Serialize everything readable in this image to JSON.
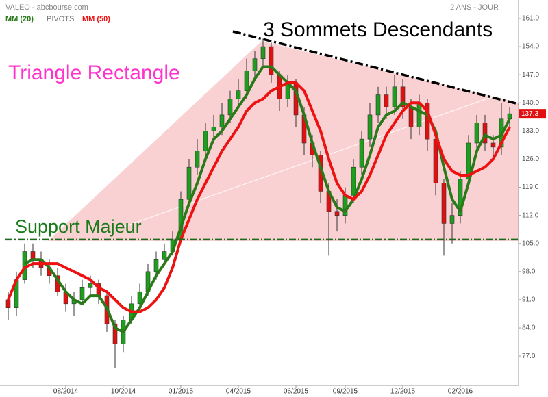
{
  "chart_data": {
    "type": "candlestick",
    "title": "VALEO - abcbourse.com",
    "period": "2 ANS - JOUR",
    "pivots_label": "PIVOTS",
    "annotations": [
      "3 Sommets Descendants",
      "Triangle Rectangle",
      "Support Majeur"
    ],
    "categories": [
      null,
      null,
      null,
      null,
      null,
      null,
      null,
      "08/2014",
      null,
      null,
      null,
      null,
      null,
      null,
      "10/2014",
      null,
      null,
      null,
      null,
      null,
      null,
      "01/2015",
      null,
      null,
      null,
      null,
      null,
      null,
      "04/2015",
      null,
      null,
      null,
      null,
      null,
      null,
      "06/2015",
      null,
      null,
      null,
      null,
      null,
      "09/2015",
      null,
      null,
      null,
      null,
      null,
      null,
      "12/2015",
      null,
      null,
      null,
      null,
      null,
      null,
      "02/2016",
      null,
      null,
      null,
      null,
      null,
      null
    ],
    "open": [
      91,
      89,
      96,
      103,
      101,
      99,
      97,
      93,
      90,
      91,
      94,
      95,
      92,
      85,
      80,
      86,
      90,
      93,
      98,
      101,
      103,
      106,
      116,
      124,
      128,
      133,
      134,
      137,
      141,
      143,
      148,
      151,
      154,
      147,
      141,
      145,
      137,
      130,
      127,
      118,
      113,
      112,
      117,
      124,
      131,
      137,
      142,
      139,
      144,
      139,
      134,
      140,
      131,
      120,
      110,
      112,
      121,
      130,
      135,
      130,
      129,
      136
    ],
    "high": [
      93,
      98,
      105,
      105,
      103,
      101,
      99,
      95,
      93,
      96,
      97,
      96,
      93,
      86,
      87,
      92,
      95,
      100,
      103,
      105,
      108,
      118,
      126,
      131,
      135,
      137,
      140,
      143,
      146,
      151,
      153,
      156,
      155,
      148,
      147,
      146,
      139,
      132,
      128,
      120,
      116,
      119,
      126,
      133,
      140,
      144,
      144,
      147,
      146,
      141,
      142,
      141,
      132,
      121,
      115,
      123,
      132,
      137,
      137,
      132,
      140,
      139
    ],
    "low": [
      86,
      87,
      95,
      99,
      97,
      95,
      92,
      88,
      87,
      90,
      92,
      90,
      83,
      74,
      78,
      85,
      88,
      92,
      96,
      100,
      102,
      105,
      114,
      122,
      126,
      131,
      132,
      135,
      139,
      141,
      146,
      149,
      145,
      138,
      139,
      134,
      127,
      124,
      115,
      102,
      108,
      110,
      115,
      122,
      129,
      135,
      136,
      137,
      136,
      131,
      132,
      128,
      117,
      102,
      105,
      110,
      119,
      128,
      128,
      126,
      127,
      134
    ],
    "close": [
      89,
      96,
      103,
      101,
      99,
      97,
      93,
      90,
      91,
      94,
      95,
      92,
      85,
      80,
      86,
      90,
      93,
      98,
      101,
      103,
      106,
      116,
      124,
      128,
      133,
      134,
      137,
      141,
      143,
      148,
      151,
      154,
      147,
      141,
      145,
      137,
      130,
      127,
      118,
      113,
      112,
      117,
      124,
      131,
      137,
      142,
      139,
      144,
      139,
      134,
      140,
      131,
      120,
      110,
      112,
      121,
      130,
      135,
      130,
      129,
      136,
      137.3
    ],
    "up_color": "#1e9e1e",
    "down_color": "#e01010",
    "series": [
      {
        "name": "MM (20)",
        "color": "#2a7a1a",
        "values": [
          null,
          null,
          100,
          101,
          101,
          99,
          96,
          93,
          91,
          90,
          92,
          92,
          89,
          84,
          83,
          86,
          89,
          93,
          97,
          100,
          103,
          109,
          115,
          120,
          126,
          131,
          133,
          136,
          139,
          142,
          146,
          149,
          149,
          147,
          145,
          143,
          137,
          130,
          124,
          118,
          114,
          113,
          116,
          121,
          127,
          134,
          137,
          138,
          140,
          139,
          138,
          137,
          133,
          124,
          116,
          113,
          120,
          128,
          132,
          131,
          132,
          136
        ]
      },
      {
        "name": "MM (50)",
        "color": "#ee1111",
        "values": [
          91,
          96,
          99,
          100,
          100,
          100,
          100,
          99,
          98,
          97,
          96,
          94,
          93,
          91,
          89,
          88,
          88,
          89,
          91,
          94,
          99,
          106,
          111,
          116,
          120,
          124,
          128,
          131,
          134,
          138,
          140,
          141,
          143,
          144,
          145,
          145,
          143,
          138,
          133,
          126,
          120,
          117,
          116,
          118,
          122,
          127,
          132,
          135,
          138,
          140,
          140,
          138,
          132,
          126,
          123,
          122,
          122,
          123,
          124,
          126,
          130,
          134
        ]
      }
    ],
    "support_level": 106,
    "ylim": [
      69.7,
      165.6
    ],
    "yticks": [
      {
        "value": 77,
        "label": "77.0"
      },
      {
        "value": 84,
        "label": "84.0"
      },
      {
        "value": 91,
        "label": "91.0"
      },
      {
        "value": 98,
        "label": "98.0"
      },
      {
        "value": 105,
        "label": "105.0"
      },
      {
        "value": 112,
        "label": "112.0"
      },
      {
        "value": 119,
        "label": "119.0"
      },
      {
        "value": 126,
        "label": "126.0"
      },
      {
        "value": 133,
        "label": "133.0"
      },
      {
        "value": 140,
        "label": "140.0"
      },
      {
        "value": 147,
        "label": "147.0"
      },
      {
        "value": 154,
        "label": "154.0"
      },
      {
        "value": 161,
        "label": "161.0"
      }
    ]
  }
}
